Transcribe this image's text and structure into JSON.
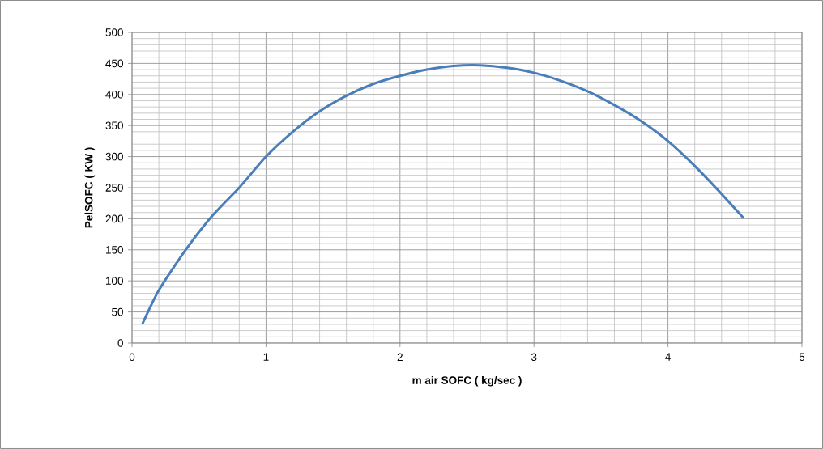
{
  "chart_data": {
    "type": "line",
    "xlabel": "m air SOFC ( kg/sec )",
    "ylabel": "PelSOFC ( KW )",
    "x": [
      0.08,
      0.2,
      0.4,
      0.6,
      0.8,
      1.0,
      1.2,
      1.4,
      1.6,
      1.8,
      2.0,
      2.2,
      2.4,
      2.6,
      2.8,
      3.0,
      3.2,
      3.4,
      3.6,
      3.8,
      4.0,
      4.2,
      4.4,
      4.56
    ],
    "series": [
      {
        "color": "#4a7ebb",
        "values": [
          32,
          85,
          150,
          205,
          250,
          300,
          340,
          373,
          398,
          417,
          430,
          440,
          446,
          447,
          443,
          435,
          422,
          405,
          383,
          357,
          325,
          285,
          240,
          202
        ]
      }
    ],
    "xlim": [
      0,
      5
    ],
    "ylim": [
      0,
      500
    ],
    "xticks": [
      0,
      1,
      2,
      3,
      4,
      5
    ],
    "yticks": [
      0,
      50,
      100,
      150,
      200,
      250,
      300,
      350,
      400,
      450,
      500
    ],
    "grid": true,
    "marker": "none",
    "line_style": "solid"
  }
}
